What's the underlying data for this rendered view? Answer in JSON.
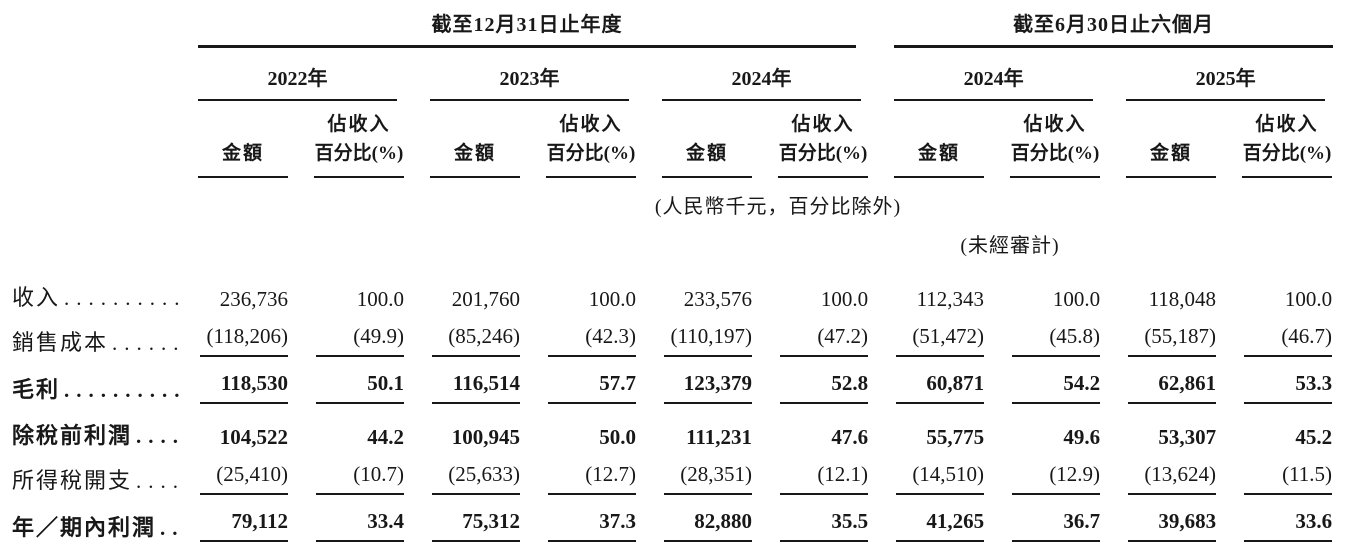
{
  "page": {
    "background": "#ffffff",
    "text_color": "#181818",
    "rule_color": "#181818"
  },
  "table": {
    "groups": [
      {
        "title": "截至12月31日止年度",
        "years": [
          "2022年",
          "2023年",
          "2024年"
        ]
      },
      {
        "title": "截至6月30日止六個月",
        "years": [
          "2024年",
          "2025年"
        ]
      }
    ],
    "col_headers": {
      "amount": "金額",
      "pct_line1": "佔收入",
      "pct_line2": "百分比(%)"
    },
    "notes": {
      "units": "(人民幣千元，百分比除外)",
      "unaudited": "(未經審計)"
    },
    "rows": [
      {
        "label": "收入",
        "leader": "..........",
        "bold": false,
        "ruled": false,
        "values": [
          "236,736",
          "100.0",
          "201,760",
          "100.0",
          "233,576",
          "100.0",
          "112,343",
          "100.0",
          "118,048",
          "100.0"
        ]
      },
      {
        "label": "銷售成本",
        "leader": "......",
        "bold": false,
        "ruled": true,
        "values": [
          "(118,206)",
          "(49.9)",
          "(85,246)",
          "(42.3)",
          "(110,197)",
          "(47.2)",
          "(51,472)",
          "(45.8)",
          "(55,187)",
          "(46.7)"
        ]
      },
      {
        "label": "毛利",
        "leader": "..........",
        "bold": true,
        "ruled": true,
        "values": [
          "118,530",
          "50.1",
          "116,514",
          "57.7",
          "123,379",
          "52.8",
          "60,871",
          "54.2",
          "62,861",
          "53.3"
        ]
      },
      {
        "label": "除稅前利潤",
        "leader": "....",
        "bold": true,
        "ruled": false,
        "values": [
          "104,522",
          "44.2",
          "100,945",
          "50.0",
          "111,231",
          "47.6",
          "55,775",
          "49.6",
          "53,307",
          "45.2"
        ]
      },
      {
        "label": "所得稅開支",
        "leader": "....",
        "bold": false,
        "ruled": true,
        "values": [
          "(25,410)",
          "(10.7)",
          "(25,633)",
          "(12.7)",
          "(28,351)",
          "(12.1)",
          "(14,510)",
          "(12.9)",
          "(13,624)",
          "(11.5)"
        ]
      },
      {
        "label": "年／期內利潤",
        "leader": "..",
        "bold": true,
        "ruled": true,
        "values": [
          "79,112",
          "33.4",
          "75,312",
          "37.3",
          "82,880",
          "35.5",
          "41,265",
          "36.7",
          "39,683",
          "33.6"
        ]
      }
    ]
  }
}
